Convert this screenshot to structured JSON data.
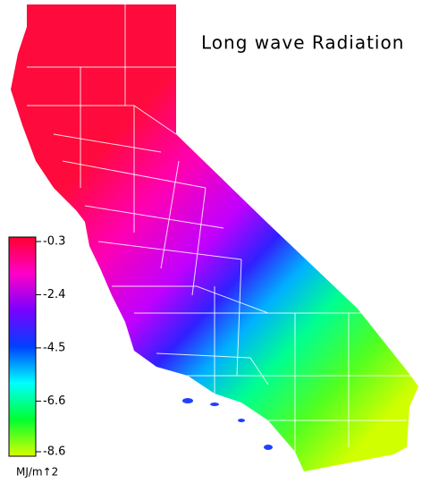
{
  "title": "Long wave Radiation",
  "legend": {
    "unit": "MJ/m↑2",
    "lim": [
      -0.3,
      -8.6
    ],
    "ticks": [
      -0.3,
      -2.4,
      -4.5,
      -6.6,
      -8.6
    ],
    "colors": [
      "#ff0030",
      "#ff00c8",
      "#7a00ff",
      "#0040ff",
      "#00ffff",
      "#00ff30",
      "#d8ff00"
    ]
  }
}
